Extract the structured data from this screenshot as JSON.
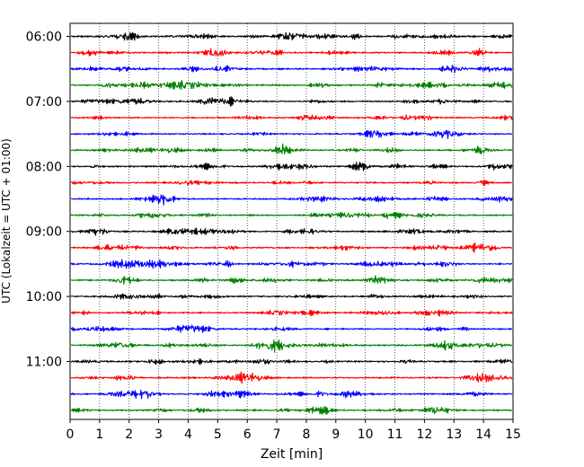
{
  "chart_data": {
    "type": "line",
    "xlabel": "Zeit  [min]",
    "ylabel": "UTC (Lokalzeit = UTC + 01:00)",
    "xlim": [
      0,
      15
    ],
    "x_ticks": [
      0,
      1,
      2,
      3,
      4,
      5,
      6,
      7,
      8,
      9,
      10,
      11,
      12,
      13,
      14,
      15
    ],
    "y_tick_labels": [
      "06:00",
      "07:00",
      "08:00",
      "09:00",
      "10:00",
      "11:00"
    ],
    "grid": "vertical-dotted",
    "trace_colors": [
      "#000000",
      "#ff0000",
      "#0000ff",
      "#008000"
    ],
    "trace_interval_minutes": 15,
    "start_time": "06:00",
    "trace_count": 24
  }
}
